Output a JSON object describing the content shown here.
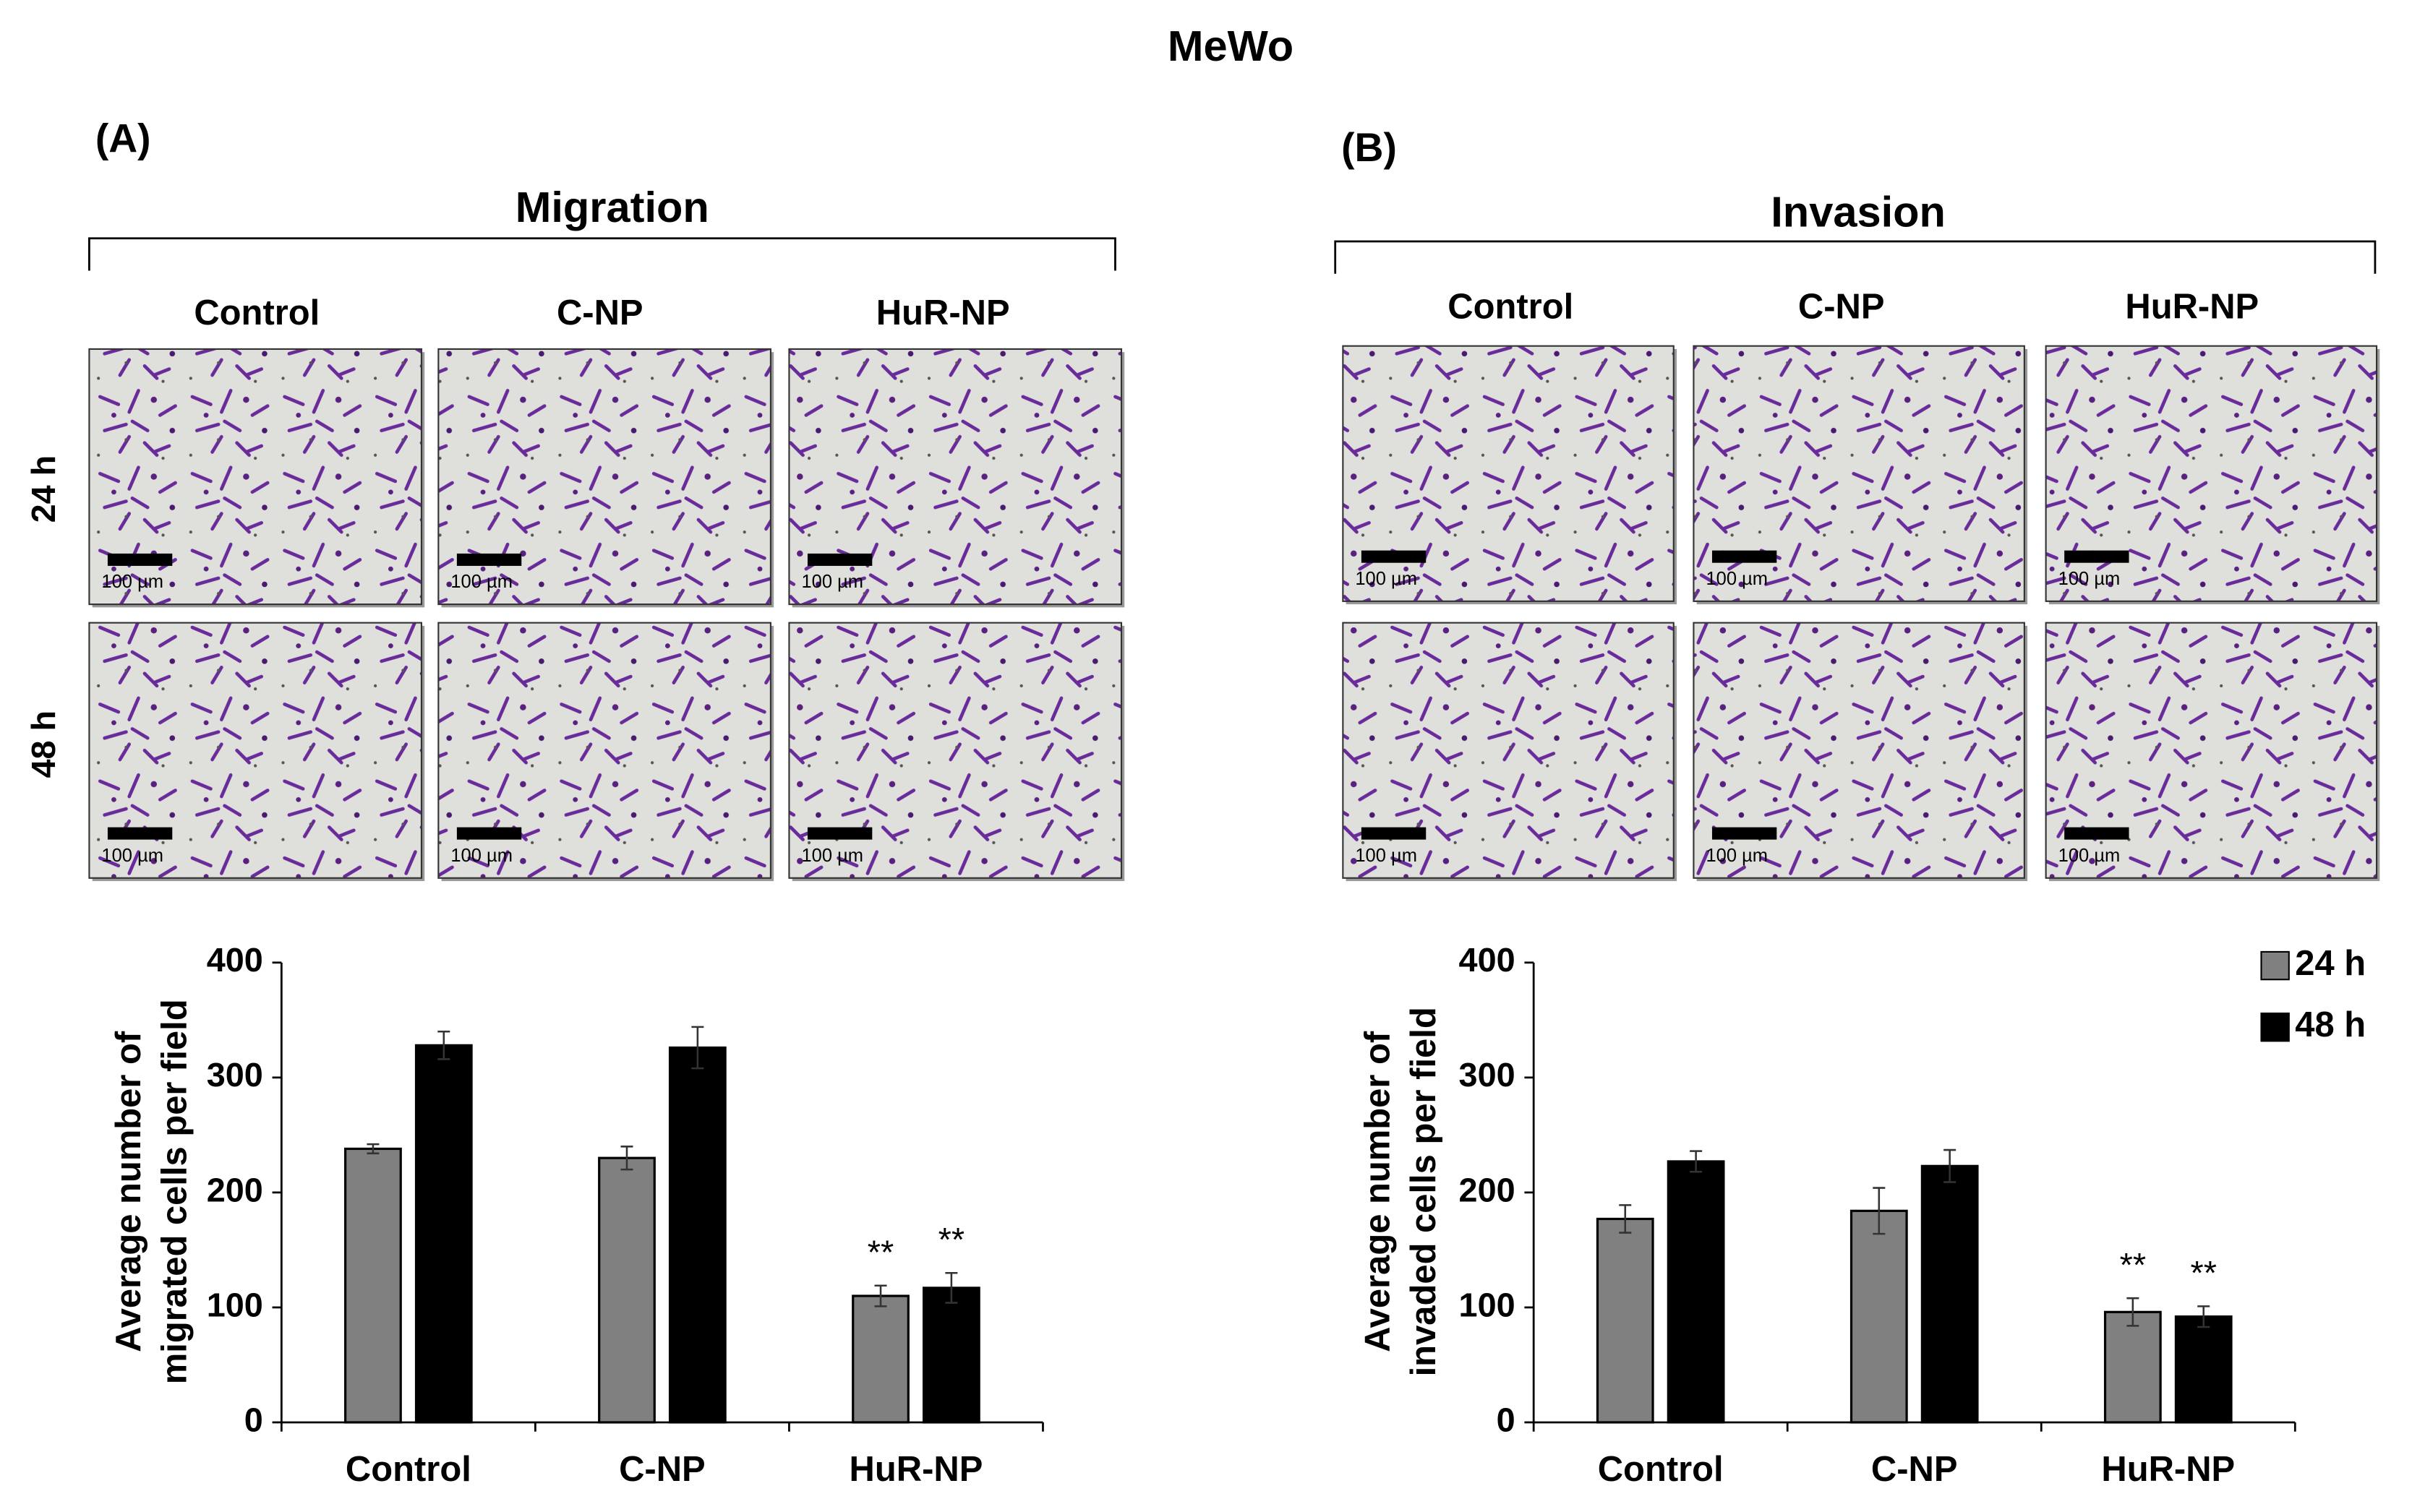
{
  "figure": {
    "title": "MeWo",
    "panels": [
      {
        "label": "(A)",
        "heading": "Migration",
        "columns": [
          "Control",
          "C-NP",
          "HuR-NP"
        ],
        "rows": [
          "24 h",
          "48 h"
        ],
        "scale_labels": [
          [
            "100 µm",
            "100 µm",
            "100 µm"
          ],
          [
            "100 µm",
            "100 µm",
            "100 µm"
          ]
        ]
      },
      {
        "label": "(B)",
        "heading": "Invasion",
        "columns": [
          "Control",
          "C-NP",
          "HuR-NP"
        ],
        "scale_labels": [
          [
            "100 µm",
            "100 µm",
            "100 µm"
          ],
          [
            "100 µm",
            "100 µm",
            "100 µm"
          ]
        ]
      }
    ]
  },
  "chart_data": [
    {
      "type": "bar",
      "ylabel": [
        "Average number of",
        "migrated cells per field"
      ],
      "categories": [
        "Control",
        "C-NP",
        "HuR-NP"
      ],
      "series": [
        {
          "name": "24 h",
          "color": "#808080",
          "values": [
            238,
            230,
            110
          ],
          "errors": [
            4,
            10,
            9
          ],
          "annotations": [
            null,
            null,
            "**"
          ]
        },
        {
          "name": "48 h",
          "color": "#000000",
          "values": [
            328,
            326,
            117
          ],
          "errors": [
            12,
            18,
            13
          ],
          "annotations": [
            null,
            null,
            "**"
          ]
        }
      ],
      "ylim": [
        0,
        400
      ],
      "yticks": [
        0,
        100,
        200,
        300,
        400
      ]
    },
    {
      "type": "bar",
      "ylabel": [
        "Average number of",
        "invaded cells per field"
      ],
      "categories": [
        "Control",
        "C-NP",
        "HuR-NP"
      ],
      "series": [
        {
          "name": "24 h",
          "color": "#808080",
          "values": [
            177,
            184,
            96
          ],
          "errors": [
            12,
            20,
            12
          ],
          "annotations": [
            null,
            null,
            "**"
          ]
        },
        {
          "name": "48 h",
          "color": "#000000",
          "values": [
            227,
            223,
            92
          ],
          "errors": [
            9,
            14,
            9
          ],
          "annotations": [
            null,
            null,
            "**"
          ]
        }
      ],
      "ylim": [
        0,
        400
      ],
      "yticks": [
        0,
        100,
        200,
        300,
        400
      ],
      "legend": "top-right"
    }
  ]
}
